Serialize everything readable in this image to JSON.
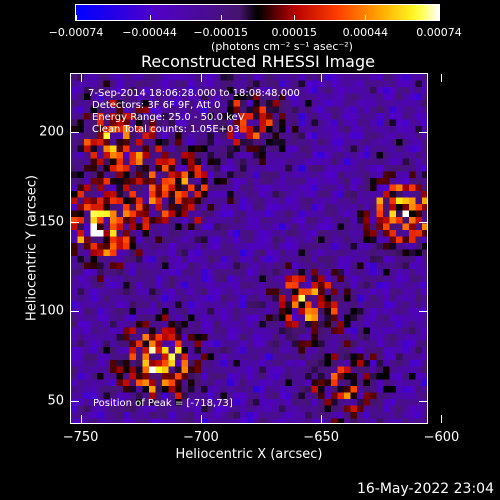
{
  "chart_data": {
    "type": "heatmap",
    "title": "Reconstructed RHESSI Image",
    "xlabel": "Heliocentric X (arcsec)",
    "ylabel": "Heliocentric Y (arcsec)",
    "xlim": [
      -754,
      -606
    ],
    "ylim": [
      38,
      232
    ],
    "x_ticks": [
      {
        "value": -750,
        "label": "−750"
      },
      {
        "value": -700,
        "label": "−700"
      },
      {
        "value": -650,
        "label": "−650"
      },
      {
        "value": -600,
        "label": "−600"
      }
    ],
    "y_ticks": [
      {
        "value": 200,
        "label": "200"
      },
      {
        "value": 150,
        "label": "150"
      },
      {
        "value": 100,
        "label": "100"
      },
      {
        "value": 50,
        "label": "50"
      }
    ],
    "colorbar": {
      "min": -0.00074,
      "max": 0.00074,
      "label": "(photons cm⁻² s⁻¹ asec⁻²)",
      "ticks": [
        {
          "value": -0.00074,
          "label": "−0.00074"
        },
        {
          "value": -0.00044,
          "label": "−0.00044"
        },
        {
          "value": -0.00015,
          "label": "−0.00015"
        },
        {
          "value": 0.00015,
          "label": "0.00015"
        },
        {
          "value": 0.00044,
          "label": "0.00044"
        },
        {
          "value": 0.00074,
          "label": "0.00074"
        }
      ]
    },
    "annotations": {
      "time": "7-Sep-2014 18:06:28.000 to 18:08:48.000",
      "detectors": "Detectors: 3F 6F 9F, Att 0",
      "energy": "Energy Range: 25.0 - 50.0 keV",
      "method": "Clean    Total counts: 1.05E+03",
      "peak": "Position of Peak = [-718,73]"
    },
    "sources": [
      {
        "x": -740,
        "y": 148,
        "amp": 0.00074
      },
      {
        "x": -718,
        "y": 73,
        "amp": 0.00074
      },
      {
        "x": -735,
        "y": 195,
        "amp": 0.00058
      },
      {
        "x": -710,
        "y": 170,
        "amp": 0.00055
      },
      {
        "x": -655,
        "y": 105,
        "amp": 0.00056
      },
      {
        "x": -615,
        "y": 155,
        "amp": 0.00066
      },
      {
        "x": -678,
        "y": 205,
        "amp": 0.00044
      },
      {
        "x": -640,
        "y": 60,
        "amp": 0.0004
      }
    ]
  },
  "footer": {
    "timestamp": "16-May-2022 23:04"
  }
}
